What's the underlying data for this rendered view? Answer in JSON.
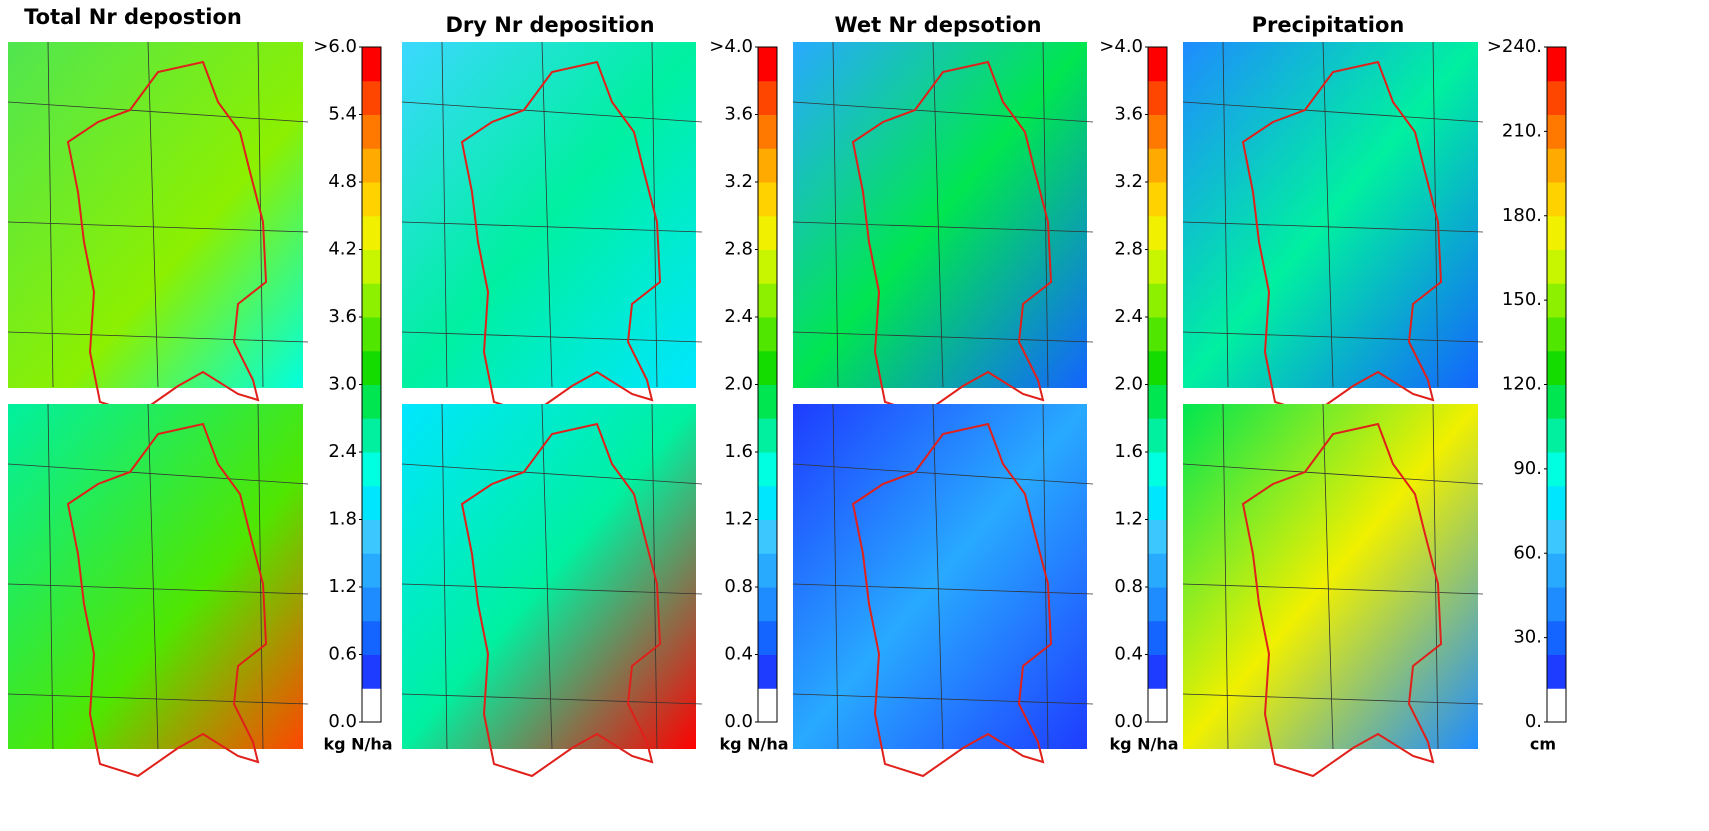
{
  "panels": [
    {
      "title": "Total Nr depostion"
    },
    {
      "title": "Dry Nr deposition"
    },
    {
      "title": "Wet Nr depsotion"
    },
    {
      "title": "Precipitation"
    }
  ],
  "colorbars": [
    {
      "range": [
        0,
        6
      ],
      "unit": "kg N/ha",
      "ticks": [
        {
          "value": 0,
          "label": "0.0"
        },
        0.6,
        1.2,
        1.8,
        2.4,
        {
          "value": 3,
          "label": "3.0"
        },
        3.6,
        4.2,
        4.8,
        5.4,
        {
          "value": 6,
          "label": ">6.0"
        }
      ],
      "colors": [
        "#ffffff",
        "#1e3cff",
        "#1464ff",
        "#1e8cff",
        "#28aaff",
        "#3cc8ff",
        "#00e6ff",
        "#00ffe0",
        "#00f0a0",
        "#00e650",
        "#14dc00",
        "#50e600",
        "#8cf000",
        "#c8f500",
        "#f0f000",
        "#ffd200",
        "#ffaa00",
        "#ff7800",
        "#ff4600",
        "#ff0000"
      ]
    },
    {
      "range": [
        0,
        4
      ],
      "unit": "kg N/ha",
      "ticks": [
        {
          "value": 0,
          "label": "0.0"
        },
        0.4,
        0.8,
        1.2,
        1.6,
        {
          "value": 2,
          "label": "2.0"
        },
        2.4,
        2.8,
        3.2,
        3.6,
        {
          "value": 4,
          "label": ">4.0"
        }
      ],
      "colors": [
        "#ffffff",
        "#1e3cff",
        "#1464ff",
        "#1e8cff",
        "#28aaff",
        "#3cc8ff",
        "#00e6ff",
        "#00ffe0",
        "#00f0a0",
        "#00e650",
        "#14dc00",
        "#50e600",
        "#8cf000",
        "#c8f500",
        "#f0f000",
        "#ffd200",
        "#ffaa00",
        "#ff7800",
        "#ff4600",
        "#ff0000"
      ]
    },
    {
      "range": [
        0,
        4
      ],
      "unit": "kg N/ha",
      "ticks": [
        {
          "value": 0,
          "label": "0.0"
        },
        0.4,
        0.8,
        1.2,
        1.6,
        {
          "value": 2,
          "label": "2.0"
        },
        2.4,
        2.8,
        3.2,
        3.6,
        {
          "value": 4,
          "label": ">4.0"
        }
      ],
      "colors": [
        "#ffffff",
        "#1e3cff",
        "#1464ff",
        "#1e8cff",
        "#28aaff",
        "#3cc8ff",
        "#00e6ff",
        "#00ffe0",
        "#00f0a0",
        "#00e650",
        "#14dc00",
        "#50e600",
        "#8cf000",
        "#c8f500",
        "#f0f000",
        "#ffd200",
        "#ffaa00",
        "#ff7800",
        "#ff4600",
        "#ff0000"
      ]
    },
    {
      "range": [
        0,
        240
      ],
      "unit": "cm",
      "ticks": [
        {
          "value": 0,
          "label": "0."
        },
        {
          "value": 30,
          "label": "30."
        },
        {
          "value": 60,
          "label": "60."
        },
        {
          "value": 90,
          "label": "90."
        },
        {
          "value": 120,
          "label": "120."
        },
        {
          "value": 150,
          "label": "150."
        },
        {
          "value": 180,
          "label": "180."
        },
        {
          "value": 210,
          "label": "210."
        },
        {
          "value": 240,
          "label": ">240."
        }
      ],
      "colors": [
        "#ffffff",
        "#1e3cff",
        "#1464ff",
        "#1e8cff",
        "#28aaff",
        "#3cc8ff",
        "#00e6ff",
        "#00ffe0",
        "#00f0a0",
        "#00e650",
        "#14dc00",
        "#50e600",
        "#8cf000",
        "#c8f500",
        "#f0f000",
        "#ffd200",
        "#ffaa00",
        "#ff7800",
        "#ff4600",
        "#ff0000"
      ]
    }
  ]
}
